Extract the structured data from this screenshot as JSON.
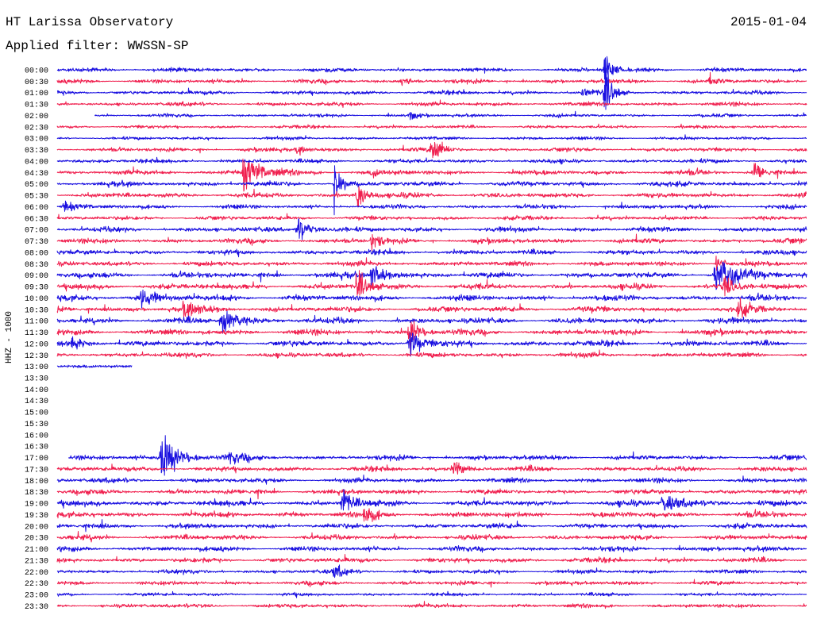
{
  "header": {
    "title": "HT Larissa Observatory",
    "date": "2015-01-04",
    "filter_label": "Applied filter:",
    "filter_value": "WWSSN-SP"
  },
  "chart_data": {
    "type": "line",
    "subtype": "helicorder",
    "ylabel": "HHZ - 1000",
    "colors": {
      "even_hour": "#1a10e0",
      "half_hour": "#f0204f"
    },
    "time_labels": [
      "00:00",
      "00:30",
      "01:00",
      "01:30",
      "02:00",
      "02:30",
      "03:00",
      "03:30",
      "04:00",
      "04:30",
      "05:00",
      "05:30",
      "06:00",
      "06:30",
      "07:00",
      "07:30",
      "08:00",
      "08:30",
      "09:00",
      "09:30",
      "10:00",
      "10:30",
      "11:00",
      "11:30",
      "12:00",
      "12:30",
      "13:00",
      "13:30",
      "14:00",
      "14:30",
      "15:00",
      "15:30",
      "16:00",
      "16:30",
      "17:00",
      "17:30",
      "18:00",
      "18:30",
      "19:00",
      "19:30",
      "20:00",
      "20:30",
      "21:00",
      "21:30",
      "22:00",
      "22:30",
      "23:00",
      "23:30"
    ],
    "traces": [
      {
        "label": "00:00",
        "start": 0,
        "end": 1,
        "amp": 2.5,
        "events": [
          {
            "x": 0.73,
            "amp": 22,
            "width": 0.008
          }
        ]
      },
      {
        "label": "00:30",
        "start": 0,
        "end": 1,
        "amp": 2.5,
        "events": [
          {
            "x": 0.46,
            "amp": 6,
            "width": 0.01
          },
          {
            "x": 0.87,
            "amp": 5,
            "width": 0.01
          }
        ]
      },
      {
        "label": "01:00",
        "start": 0,
        "end": 1,
        "amp": 2.5,
        "events": [
          {
            "x": 0.73,
            "amp": 30,
            "width": 0.008
          },
          {
            "x": 0.7,
            "amp": 6,
            "width": 0.01
          }
        ]
      },
      {
        "label": "01:30",
        "start": 0,
        "end": 1,
        "amp": 2.5,
        "events": []
      },
      {
        "label": "02:00",
        "start": 0.05,
        "end": 1,
        "amp": 2,
        "events": [
          {
            "x": 0.47,
            "amp": 5,
            "width": 0.008
          }
        ]
      },
      {
        "label": "02:30",
        "start": 0,
        "end": 1,
        "amp": 2,
        "events": []
      },
      {
        "label": "03:00",
        "start": 0,
        "end": 1,
        "amp": 2,
        "events": []
      },
      {
        "label": "03:30",
        "start": 0,
        "end": 1,
        "amp": 2.5,
        "events": [
          {
            "x": 0.5,
            "amp": 16,
            "width": 0.012
          },
          {
            "x": 0.32,
            "amp": 5,
            "width": 0.01
          }
        ]
      },
      {
        "label": "04:00",
        "start": 0,
        "end": 1,
        "amp": 2.5,
        "events": []
      },
      {
        "label": "04:30",
        "start": 0,
        "end": 1,
        "amp": 3,
        "events": [
          {
            "x": 0.25,
            "amp": 20,
            "width": 0.02
          },
          {
            "x": 0.93,
            "amp": 12,
            "width": 0.012
          },
          {
            "x": 0.42,
            "amp": 6,
            "width": 0.01
          }
        ]
      },
      {
        "label": "05:00",
        "start": 0,
        "end": 1,
        "amp": 3,
        "events": [
          {
            "x": 0.37,
            "amp": 24,
            "width": 0.008
          }
        ]
      },
      {
        "label": "05:30",
        "start": 0,
        "end": 1,
        "amp": 3,
        "events": [
          {
            "x": 0.4,
            "amp": 14,
            "width": 0.012
          }
        ]
      },
      {
        "label": "06:00",
        "start": 0,
        "end": 1,
        "amp": 2.5,
        "events": [
          {
            "x": 0.01,
            "amp": 5,
            "width": 0.015
          }
        ]
      },
      {
        "label": "06:30",
        "start": 0,
        "end": 1,
        "amp": 2.5,
        "events": []
      },
      {
        "label": "07:00",
        "start": 0,
        "end": 1,
        "amp": 3,
        "events": [
          {
            "x": 0.32,
            "amp": 18,
            "width": 0.012
          }
        ]
      },
      {
        "label": "07:30",
        "start": 0,
        "end": 1,
        "amp": 3,
        "events": [
          {
            "x": 0.42,
            "amp": 10,
            "width": 0.01
          }
        ]
      },
      {
        "label": "08:00",
        "start": 0,
        "end": 1,
        "amp": 3,
        "events": []
      },
      {
        "label": "08:30",
        "start": 0,
        "end": 1,
        "amp": 3,
        "events": [
          {
            "x": 0.88,
            "amp": 8,
            "width": 0.01
          }
        ]
      },
      {
        "label": "09:00",
        "start": 0,
        "end": 1,
        "amp": 3.5,
        "events": [
          {
            "x": 0.42,
            "amp": 14,
            "width": 0.015
          },
          {
            "x": 0.88,
            "amp": 18,
            "width": 0.025
          }
        ]
      },
      {
        "label": "09:30",
        "start": 0,
        "end": 1,
        "amp": 3.5,
        "events": [
          {
            "x": 0.4,
            "amp": 16,
            "width": 0.012
          },
          {
            "x": 0.89,
            "amp": 10,
            "width": 0.012
          }
        ]
      },
      {
        "label": "10:00",
        "start": 0,
        "end": 1,
        "amp": 3.5,
        "events": [
          {
            "x": 0.11,
            "amp": 10,
            "width": 0.02
          }
        ]
      },
      {
        "label": "10:30",
        "start": 0,
        "end": 1,
        "amp": 3.5,
        "events": [
          {
            "x": 0.17,
            "amp": 9,
            "width": 0.015
          },
          {
            "x": 0.91,
            "amp": 8,
            "width": 0.012
          }
        ]
      },
      {
        "label": "11:00",
        "start": 0,
        "end": 1,
        "amp": 3.5,
        "events": [
          {
            "x": 0.22,
            "amp": 11,
            "width": 0.02
          }
        ]
      },
      {
        "label": "11:30",
        "start": 0,
        "end": 1,
        "amp": 3.5,
        "events": [
          {
            "x": 0.47,
            "amp": 22,
            "width": 0.01
          }
        ]
      },
      {
        "label": "12:00",
        "start": 0,
        "end": 1,
        "amp": 3.5,
        "events": [
          {
            "x": 0.47,
            "amp": 16,
            "width": 0.012
          },
          {
            "x": 0.02,
            "amp": 7,
            "width": 0.015
          }
        ]
      },
      {
        "label": "12:30",
        "start": 0,
        "end": 1,
        "amp": 3,
        "events": []
      },
      {
        "label": "13:00",
        "start": 0,
        "end": 0.1,
        "amp": 3,
        "events": []
      },
      {
        "label": "13:30",
        "start": 0,
        "end": 0,
        "amp": 0,
        "events": []
      },
      {
        "label": "14:00",
        "start": 0,
        "end": 0,
        "amp": 0,
        "events": []
      },
      {
        "label": "14:30",
        "start": 0,
        "end": 0,
        "amp": 0,
        "events": []
      },
      {
        "label": "15:00",
        "start": 0,
        "end": 0,
        "amp": 0,
        "events": []
      },
      {
        "label": "15:30",
        "start": 0,
        "end": 0,
        "amp": 0,
        "events": []
      },
      {
        "label": "16:00",
        "start": 0,
        "end": 0,
        "amp": 0,
        "events": []
      },
      {
        "label": "16:30",
        "start": 0,
        "end": 0,
        "amp": 0,
        "events": []
      },
      {
        "label": "17:00",
        "start": 0.015,
        "end": 1,
        "amp": 3,
        "events": [
          {
            "x": 0.14,
            "amp": 26,
            "width": 0.02
          },
          {
            "x": 0.23,
            "amp": 6,
            "width": 0.015
          }
        ]
      },
      {
        "label": "17:30",
        "start": 0,
        "end": 1,
        "amp": 3,
        "events": [
          {
            "x": 0.53,
            "amp": 7,
            "width": 0.015
          }
        ]
      },
      {
        "label": "18:00",
        "start": 0,
        "end": 1,
        "amp": 3,
        "events": []
      },
      {
        "label": "18:30",
        "start": 0,
        "end": 1,
        "amp": 3,
        "events": []
      },
      {
        "label": "19:00",
        "start": 0,
        "end": 1,
        "amp": 3.5,
        "events": [
          {
            "x": 0.38,
            "amp": 18,
            "width": 0.01
          },
          {
            "x": 0.81,
            "amp": 9,
            "width": 0.025
          }
        ]
      },
      {
        "label": "19:30",
        "start": 0,
        "end": 1,
        "amp": 3.5,
        "events": [
          {
            "x": 0.41,
            "amp": 12,
            "width": 0.01
          }
        ]
      },
      {
        "label": "20:00",
        "start": 0,
        "end": 1,
        "amp": 3,
        "events": []
      },
      {
        "label": "20:30",
        "start": 0,
        "end": 1,
        "amp": 3,
        "events": []
      },
      {
        "label": "21:00",
        "start": 0,
        "end": 1,
        "amp": 3,
        "events": []
      },
      {
        "label": "21:30",
        "start": 0,
        "end": 1,
        "amp": 3,
        "events": []
      },
      {
        "label": "22:00",
        "start": 0,
        "end": 1,
        "amp": 2.5,
        "events": [
          {
            "x": 0.37,
            "amp": 6,
            "width": 0.015
          }
        ]
      },
      {
        "label": "22:30",
        "start": 0,
        "end": 1,
        "amp": 2.5,
        "events": []
      },
      {
        "label": "23:00",
        "start": 0,
        "end": 1,
        "amp": 2,
        "events": []
      },
      {
        "label": "23:30",
        "start": 0,
        "end": 1,
        "amp": 2.5,
        "events": []
      }
    ]
  }
}
